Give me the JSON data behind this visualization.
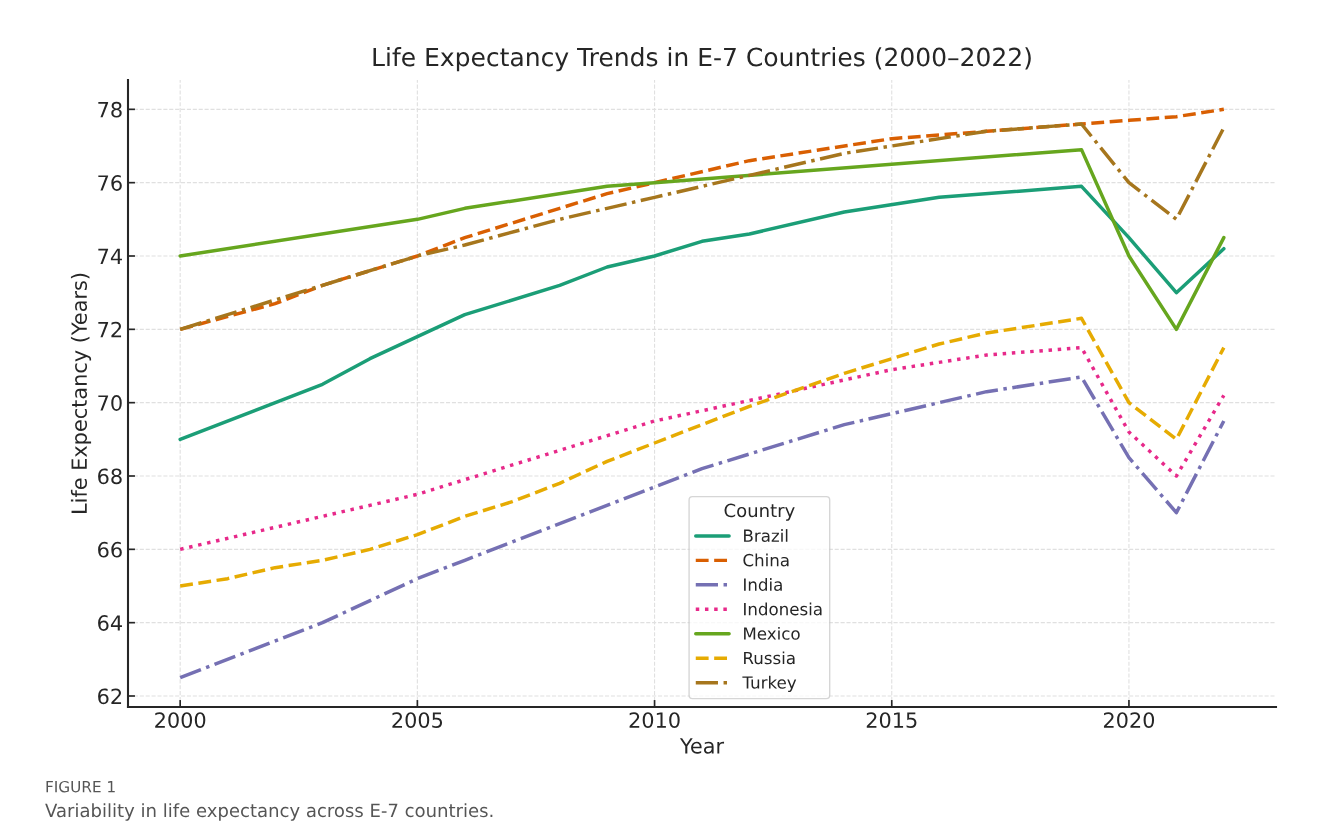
{
  "chart_data": {
    "type": "line",
    "title": "Life Expectancy Trends in E-7 Countries (2000–2022)",
    "xlabel": "Year",
    "ylabel": "Life Expectancy (Years)",
    "legend_title": "Country",
    "legend": "bottom",
    "grid": true,
    "xlim": [
      1998.9,
      2023.1
    ],
    "xticks": [
      2000,
      2005,
      2010,
      2015,
      2020
    ],
    "ylim": [
      61.7,
      78.8
    ],
    "yticks": [
      62,
      64,
      66,
      68,
      70,
      72,
      74,
      76,
      78
    ],
    "annotations": [
      "FIGURE 1",
      "Variability in life expectancy across E-7 countries."
    ],
    "series": [
      {
        "name": "Brazil",
        "color": "#1b9e77",
        "line_style": "solid",
        "x": [
          2000,
          2003,
          2004,
          2006,
          2008,
          2009,
          2010,
          2011,
          2012,
          2014,
          2016,
          2019,
          2020,
          2021,
          2022
        ],
        "values": [
          69,
          70.5,
          71.2,
          72.4,
          73.2,
          73.7,
          74.0,
          74.4,
          74.6,
          75.2,
          75.6,
          75.9,
          74.5,
          73,
          74.2
        ]
      },
      {
        "name": "China",
        "color": "#d95f02",
        "line_style": "dashed",
        "x": [
          2000,
          2002,
          2003,
          2005,
          2006,
          2008,
          2009,
          2010,
          2012,
          2013,
          2015,
          2016,
          2017,
          2019,
          2020,
          2021,
          2022
        ],
        "values": [
          72,
          72.7,
          73.2,
          74,
          74.5,
          75.3,
          75.7,
          76,
          76.6,
          76.8,
          77.2,
          77.3,
          77.4,
          77.6,
          77.7,
          77.8,
          78
        ]
      },
      {
        "name": "India",
        "color": "#7570b3",
        "line_style": "dashdot",
        "x": [
          2000,
          2003,
          2005,
          2006,
          2008,
          2010,
          2011,
          2014,
          2015,
          2017,
          2019,
          2020,
          2021,
          2022
        ],
        "values": [
          62.5,
          64,
          65.2,
          65.7,
          66.7,
          67.7,
          68.2,
          69.4,
          69.7,
          70.3,
          70.7,
          68.5,
          67,
          69.5
        ]
      },
      {
        "name": "Indonesia",
        "color": "#e7298a",
        "line_style": "dotted",
        "x": [
          2000,
          2005,
          2010,
          2015,
          2017,
          2019,
          2020,
          2021,
          2022
        ],
        "values": [
          66,
          67.5,
          69.5,
          70.9,
          71.3,
          71.5,
          69.2,
          68,
          70.2
        ]
      },
      {
        "name": "Mexico",
        "color": "#66a61e",
        "line_style": "solid",
        "x": [
          2000,
          2005,
          2006,
          2009,
          2010,
          2019,
          2020,
          2021,
          2022
        ],
        "values": [
          74,
          75,
          75.3,
          75.9,
          76,
          76.9,
          74,
          72,
          74.5
        ]
      },
      {
        "name": "Russia",
        "color": "#e6ab02",
        "line_style": "dashed",
        "x": [
          2000,
          2001,
          2002,
          2003,
          2004,
          2005,
          2006,
          2007,
          2008,
          2009,
          2010,
          2012,
          2014,
          2016,
          2017,
          2019,
          2020,
          2021,
          2022
        ],
        "values": [
          65,
          65.2,
          65.5,
          65.7,
          66.0,
          66.4,
          66.9,
          67.3,
          67.8,
          68.4,
          68.9,
          69.9,
          70.8,
          71.6,
          71.9,
          72.3,
          70,
          69,
          71.5
        ]
      },
      {
        "name": "Turkey",
        "color": "#a6761d",
        "line_style": "dashdot",
        "x": [
          2000,
          2003,
          2005,
          2006,
          2008,
          2010,
          2012,
          2014,
          2017,
          2019,
          2020,
          2021,
          2022
        ],
        "values": [
          72,
          73.2,
          74,
          74.3,
          75,
          75.6,
          76.2,
          76.8,
          77.4,
          77.6,
          76,
          75,
          77.5
        ]
      }
    ]
  }
}
